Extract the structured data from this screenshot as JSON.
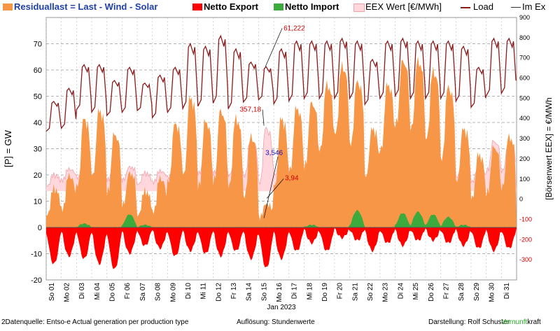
{
  "legend": {
    "residual": "Residuallast  =  Last - Wind - Solar",
    "export": "Netto Export",
    "import": "Netto Import",
    "eex": "EEX Wert [€/MWh]",
    "load": "Load",
    "imex": "Im Ex"
  },
  "colors": {
    "residual": "#F79646",
    "export": "#FF0000",
    "import": "#3CAA3C",
    "eex_fill": "#FFD7DC",
    "eex_line": "#F4A0A8",
    "load": "#8B1A1A",
    "annotation_red": "#D00000",
    "annotation_blue": "#1010C0",
    "brand_green": "#22AA22"
  },
  "footer": {
    "source": "2Datenquelle: Entso-e  Actual generation per production type",
    "resolution": "Auflösung: Stundenwerte",
    "author": "Darstellung:  Rolf Schuster",
    "brand_a": "Vernunft",
    "brand_b": "kraft"
  },
  "annotations": {
    "price_max": "357,18",
    "load_max": "61,222",
    "price_min": "3,94",
    "residual_min": "3,546"
  },
  "chart_data": {
    "type": "area",
    "xlabel": "Jan 2023",
    "ylabel_left": "[P]  =  GW",
    "ylabel_right": "[Börsenwert EEX]  =  €/MWh",
    "ylim_left": [
      -20,
      80
    ],
    "yticks_left": [
      -20,
      -10,
      0,
      10,
      20,
      30,
      40,
      50,
      60,
      70
    ],
    "ylim_right": [
      -400,
      900
    ],
    "yticks_right": [
      -300,
      -200,
      -100,
      0,
      100,
      200,
      300,
      400,
      500,
      600,
      700,
      800,
      900
    ],
    "grid": true,
    "x_tick_labels": [
      "So 01",
      "Mo 02",
      "Di 03",
      "Mi 04",
      "Do 05",
      "Fr 06",
      "Sa 07",
      "So 08",
      "Mo 09",
      "Di 10",
      "Mi 11",
      "Do 12",
      "Fr 13",
      "Sa 14",
      "So 15",
      "Mo 16",
      "Di 17",
      "Mi 18",
      "Do 19",
      "Fr 20",
      "Sa 21",
      "So 22",
      "Mo 23",
      "Di 24",
      "Mi 25",
      "Do 26",
      "Fr 27",
      "Sa 28",
      "So 29",
      "Mo 30",
      "Di 31"
    ],
    "days": [
      1,
      2,
      3,
      4,
      5,
      6,
      7,
      8,
      9,
      10,
      11,
      12,
      13,
      14,
      15,
      16,
      17,
      18,
      19,
      20,
      21,
      22,
      23,
      24,
      25,
      26,
      27,
      28,
      29,
      30,
      31
    ],
    "series": [
      {
        "name": "Residuallast  =  Last - Wind - Solar",
        "kind": "area",
        "daily_peak": [
          15,
          20,
          42,
          45,
          36,
          21,
          14,
          19,
          40,
          50,
          41,
          45,
          42,
          35,
          9,
          42,
          46,
          48,
          55,
          62,
          56,
          38,
          55,
          64,
          64,
          60,
          54,
          38,
          28,
          31,
          35
        ],
        "daily_min": [
          4,
          6,
          14,
          18,
          12,
          8,
          4,
          5,
          16,
          18,
          14,
          16,
          14,
          10,
          3.546,
          14,
          20,
          22,
          28,
          34,
          30,
          18,
          28,
          38,
          36,
          32,
          24,
          16,
          10,
          12,
          14
        ]
      },
      {
        "name": "Load",
        "kind": "line",
        "daily_peak": [
          48,
          53,
          62,
          62,
          56,
          61,
          55,
          58,
          61,
          70,
          69,
          73,
          68,
          63,
          61.222,
          68,
          71,
          71,
          71,
          72,
          71,
          64,
          71,
          72,
          71,
          71,
          71,
          69,
          61,
          72,
          72
        ],
        "daily_min": [
          36,
          37,
          44,
          43,
          42,
          43,
          44,
          41,
          43,
          44,
          45,
          46,
          44,
          47,
          48,
          46,
          47,
          48,
          48,
          48,
          48,
          46,
          48,
          49,
          48,
          48,
          48,
          47,
          45,
          49,
          50
        ]
      },
      {
        "name": "Netto Export",
        "kind": "area",
        "daily_min": [
          -14,
          -11,
          -12,
          -14,
          -16,
          -10,
          -7,
          -8,
          -11,
          -9,
          -10,
          -11,
          -9,
          -12,
          -15.5,
          -12,
          -9,
          -6,
          -9,
          -4,
          -5,
          -9,
          -6,
          -7,
          -5,
          -5,
          -6,
          -7,
          -8,
          -9,
          -8
        ]
      },
      {
        "name": "Netto Import",
        "kind": "area",
        "daily_max": [
          0,
          0,
          1.5,
          0,
          0,
          5,
          1,
          0,
          0,
          0,
          0,
          0,
          0,
          0,
          0,
          0,
          0,
          1,
          0,
          0,
          6.5,
          0,
          0,
          5.5,
          6,
          5,
          4,
          1,
          0,
          0,
          0
        ]
      },
      {
        "name": "EEX Wert [€/MWh]",
        "kind": "band",
        "daily_peak": [
          120,
          150,
          180,
          170,
          170,
          160,
          130,
          140,
          200,
          230,
          230,
          250,
          230,
          300,
          357.18,
          260,
          270,
          280,
          260,
          250,
          230,
          200,
          250,
          260,
          260,
          260,
          250,
          230,
          170,
          290,
          280
        ],
        "daily_min": [
          60,
          90,
          100,
          100,
          90,
          90,
          70,
          80,
          100,
          110,
          120,
          120,
          110,
          100,
          3.94,
          110,
          130,
          130,
          120,
          120,
          110,
          90,
          120,
          130,
          130,
          130,
          120,
          100,
          80,
          130,
          130
        ]
      }
    ]
  }
}
